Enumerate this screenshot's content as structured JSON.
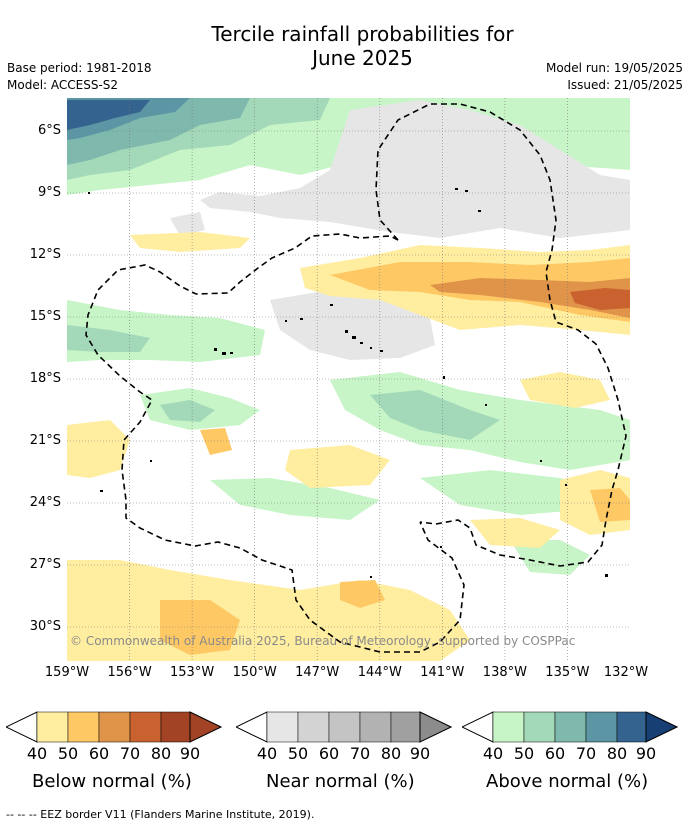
{
  "title_line1": "Tercile rainfall probabilities for",
  "title_line2": "June 2025",
  "base_period": "Base period: 1981-2018",
  "model": "Model: ACCESS-S2",
  "model_run": "Model run: 19/05/2025",
  "issued": "Issued: 21/05/2025",
  "lon_labels": [
    "159°W",
    "156°W",
    "153°W",
    "150°W",
    "147°W",
    "144°W",
    "141°W",
    "138°W",
    "135°W",
    "132°W"
  ],
  "lat_labels": [
    "6°S",
    "9°S",
    "12°S",
    "15°S",
    "18°S",
    "21°S",
    "24°S",
    "27°S",
    "30°S"
  ],
  "copyright": "© Commonwealth of Australia 2025, Bureau of Meteorology, supported by COSPPac",
  "colorbars": {
    "below": {
      "caption": "Below normal (%)",
      "ticks": [
        "40",
        "50",
        "60",
        "70",
        "80",
        "90"
      ],
      "colors": [
        "#ffeda0",
        "#fec965",
        "#e0944a",
        "#c9622f",
        "#a34326",
        "#a34326"
      ]
    },
    "near": {
      "caption": "Near normal (%)",
      "ticks": [
        "40",
        "50",
        "60",
        "70",
        "80",
        "90"
      ],
      "colors": [
        "#e6e6e6",
        "#d3d3d3",
        "#c4c4c4",
        "#b2b2b2",
        "#a0a0a0",
        "#8c8c8c"
      ]
    },
    "above": {
      "caption": "Above normal (%)",
      "ticks": [
        "40",
        "50",
        "60",
        "70",
        "80",
        "90"
      ],
      "colors": [
        "#c7f5c7",
        "#a3d9b8",
        "#7fb9ad",
        "#5c95a4",
        "#35638f",
        "#173f73"
      ]
    }
  },
  "footer": "-- -- -- EEZ border V11 (Flanders Marine Institute, 2019)."
}
